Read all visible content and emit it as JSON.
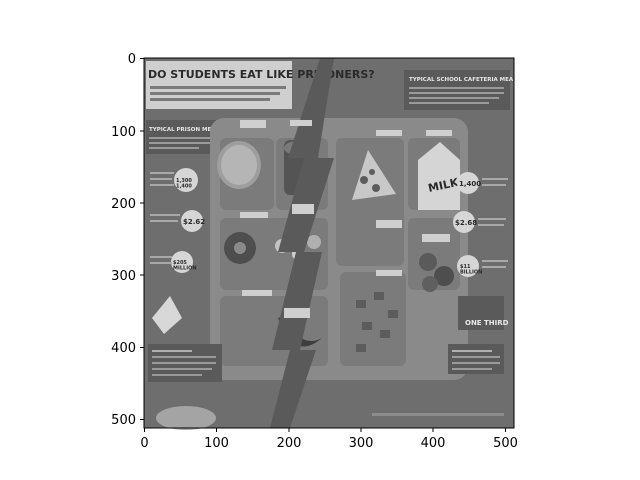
{
  "axes": {
    "x_ticks": [
      "0",
      "100",
      "200",
      "300",
      "400",
      "500"
    ],
    "y_ticks": [
      "0",
      "100",
      "200",
      "300",
      "400",
      "500"
    ]
  },
  "infographic": {
    "title": "DO STUDENTS EAT LIKE PRISONERS?",
    "prison_heading": "TYPICAL PRISON MEAL",
    "school_heading": "TYPICAL SCHOOL CAFETERIA MEAL",
    "milk_label": "MILK",
    "prison_calories": "1,300\n1,400",
    "prison_cost": "$2.62",
    "prison_budget": "$205\nMILLION",
    "school_calories": "1,400",
    "school_cost": "$2.68",
    "school_budget": "$11\nBILLION",
    "one_third": "ONE THIRD"
  },
  "colors": {
    "page_bg": "#ffffff",
    "image_bg": "#6e6e6e",
    "tray": "#8a8a8a",
    "dark": "#3a3a3a",
    "light": "#dcdcdc"
  }
}
